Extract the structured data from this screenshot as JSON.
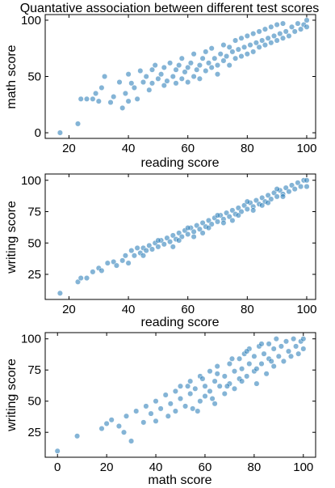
{
  "chart_data": [
    {
      "type": "scatter",
      "title": "Quantative association between different test scores",
      "xlabel": "reading score",
      "ylabel": "math score",
      "xlim": [
        12,
        103
      ],
      "ylim": [
        -5,
        105
      ],
      "xticks": [
        20,
        40,
        60,
        80,
        100
      ],
      "yticks": [
        0,
        50,
        100
      ],
      "color": "#1f77b4",
      "points": [
        [
          17,
          0
        ],
        [
          23,
          8
        ],
        [
          24,
          30
        ],
        [
          26,
          30
        ],
        [
          28,
          30
        ],
        [
          29,
          35
        ],
        [
          30,
          28
        ],
        [
          31,
          40
        ],
        [
          32,
          50
        ],
        [
          34,
          27
        ],
        [
          35,
          32
        ],
        [
          37,
          45
        ],
        [
          38,
          22
        ],
        [
          39,
          35
        ],
        [
          40,
          28
        ],
        [
          40,
          52
        ],
        [
          41,
          44
        ],
        [
          42,
          40
        ],
        [
          43,
          30
        ],
        [
          44,
          55
        ],
        [
          45,
          45
        ],
        [
          46,
          50
        ],
        [
          47,
          38
        ],
        [
          48,
          56
        ],
        [
          48,
          44
        ],
        [
          49,
          60
        ],
        [
          50,
          48
        ],
        [
          51,
          52
        ],
        [
          52,
          58
        ],
        [
          52,
          42
        ],
        [
          53,
          46
        ],
        [
          54,
          62
        ],
        [
          55,
          50
        ],
        [
          56,
          44
        ],
        [
          56,
          56
        ],
        [
          57,
          60
        ],
        [
          58,
          48
        ],
        [
          58,
          66
        ],
        [
          59,
          54
        ],
        [
          60,
          58
        ],
        [
          60,
          45
        ],
        [
          61,
          62
        ],
        [
          62,
          50
        ],
        [
          62,
          70
        ],
        [
          63,
          56
        ],
        [
          64,
          60
        ],
        [
          64,
          48
        ],
        [
          65,
          66
        ],
        [
          66,
          55
        ],
        [
          66,
          72
        ],
        [
          67,
          62
        ],
        [
          68,
          58
        ],
        [
          68,
          75
        ],
        [
          69,
          66
        ],
        [
          70,
          60
        ],
        [
          70,
          52
        ],
        [
          71,
          70
        ],
        [
          72,
          64
        ],
        [
          72,
          78
        ],
        [
          73,
          68
        ],
        [
          74,
          60
        ],
        [
          74,
          76
        ],
        [
          75,
          72
        ],
        [
          76,
          66
        ],
        [
          76,
          82
        ],
        [
          77,
          74
        ],
        [
          78,
          68
        ],
        [
          78,
          84
        ],
        [
          79,
          76
        ],
        [
          80,
          70
        ],
        [
          80,
          86
        ],
        [
          81,
          78
        ],
        [
          82,
          72
        ],
        [
          82,
          88
        ],
        [
          83,
          80
        ],
        [
          84,
          76
        ],
        [
          84,
          90
        ],
        [
          85,
          82
        ],
        [
          86,
          78
        ],
        [
          86,
          92
        ],
        [
          87,
          84
        ],
        [
          88,
          80
        ],
        [
          88,
          94
        ],
        [
          89,
          86
        ],
        [
          90,
          82
        ],
        [
          90,
          96
        ],
        [
          91,
          88
        ],
        [
          92,
          84
        ],
        [
          92,
          97
        ],
        [
          93,
          90
        ],
        [
          94,
          86
        ],
        [
          95,
          94
        ],
        [
          96,
          90
        ],
        [
          97,
          97
        ],
        [
          98,
          92
        ],
        [
          99,
          96
        ],
        [
          100,
          100
        ],
        [
          100,
          94
        ]
      ]
    },
    {
      "type": "scatter",
      "xlabel": "reading score",
      "ylabel": "writing score",
      "xlim": [
        12,
        103
      ],
      "ylim": [
        5,
        105
      ],
      "xticks": [
        20,
        40,
        60,
        80,
        100
      ],
      "yticks": [
        25,
        50,
        75,
        100
      ],
      "color": "#1f77b4",
      "points": [
        [
          17,
          10
        ],
        [
          23,
          19
        ],
        [
          24,
          22
        ],
        [
          26,
          22
        ],
        [
          28,
          27
        ],
        [
          30,
          30
        ],
        [
          31,
          28
        ],
        [
          33,
          34
        ],
        [
          35,
          35
        ],
        [
          36,
          32
        ],
        [
          38,
          36
        ],
        [
          39,
          40
        ],
        [
          40,
          34
        ],
        [
          41,
          44
        ],
        [
          42,
          40
        ],
        [
          43,
          46
        ],
        [
          44,
          42
        ],
        [
          45,
          46
        ],
        [
          46,
          44
        ],
        [
          47,
          48
        ],
        [
          48,
          45
        ],
        [
          49,
          50
        ],
        [
          50,
          47
        ],
        [
          51,
          52
        ],
        [
          52,
          49
        ],
        [
          53,
          54
        ],
        [
          54,
          51
        ],
        [
          55,
          56
        ],
        [
          56,
          53
        ],
        [
          57,
          58
        ],
        [
          58,
          55
        ],
        [
          59,
          60
        ],
        [
          60,
          57
        ],
        [
          61,
          62
        ],
        [
          62,
          59
        ],
        [
          63,
          64
        ],
        [
          64,
          61
        ],
        [
          65,
          66
        ],
        [
          66,
          63
        ],
        [
          67,
          68
        ],
        [
          68,
          65
        ],
        [
          69,
          70
        ],
        [
          70,
          67
        ],
        [
          71,
          72
        ],
        [
          72,
          69
        ],
        [
          73,
          74
        ],
        [
          74,
          71
        ],
        [
          75,
          76
        ],
        [
          76,
          73
        ],
        [
          77,
          78
        ],
        [
          78,
          75
        ],
        [
          79,
          80
        ],
        [
          80,
          77
        ],
        [
          81,
          82
        ],
        [
          82,
          79
        ],
        [
          83,
          84
        ],
        [
          84,
          81
        ],
        [
          85,
          86
        ],
        [
          86,
          83
        ],
        [
          87,
          88
        ],
        [
          88,
          85
        ],
        [
          89,
          90
        ],
        [
          90,
          87
        ],
        [
          91,
          92
        ],
        [
          92,
          89
        ],
        [
          93,
          94
        ],
        [
          94,
          91
        ],
        [
          95,
          96
        ],
        [
          96,
          93
        ],
        [
          97,
          98
        ],
        [
          98,
          95
        ],
        [
          99,
          100
        ],
        [
          100,
          100
        ],
        [
          100,
          95
        ],
        [
          45,
          40
        ],
        [
          55,
          47
        ],
        [
          65,
          58
        ],
        [
          75,
          68
        ],
        [
          85,
          80
        ],
        [
          50,
          52
        ],
        [
          60,
          62
        ],
        [
          70,
          72
        ],
        [
          80,
          83
        ],
        [
          90,
          93
        ],
        [
          57,
          52
        ],
        [
          67,
          62
        ],
        [
          77,
          72
        ],
        [
          87,
          82
        ],
        [
          62,
          55
        ],
        [
          72,
          66
        ],
        [
          82,
          76
        ],
        [
          92,
          87
        ]
      ]
    },
    {
      "type": "scatter",
      "xlabel": "math score",
      "ylabel": "writing score",
      "xlim": [
        -5,
        105
      ],
      "ylim": [
        5,
        105
      ],
      "xticks": [
        0,
        20,
        40,
        60,
        80,
        100
      ],
      "yticks": [
        25,
        50,
        75,
        100
      ],
      "color": "#1f77b4",
      "points": [
        [
          0,
          10
        ],
        [
          8,
          22
        ],
        [
          18,
          28
        ],
        [
          20,
          32
        ],
        [
          22,
          35
        ],
        [
          25,
          30
        ],
        [
          27,
          25
        ],
        [
          28,
          38
        ],
        [
          30,
          18
        ],
        [
          32,
          42
        ],
        [
          35,
          33
        ],
        [
          36,
          46
        ],
        [
          38,
          40
        ],
        [
          40,
          50
        ],
        [
          40,
          34
        ],
        [
          42,
          44
        ],
        [
          44,
          55
        ],
        [
          45,
          38
        ],
        [
          46,
          48
        ],
        [
          48,
          58
        ],
        [
          48,
          42
        ],
        [
          50,
          52
        ],
        [
          50,
          62
        ],
        [
          52,
          46
        ],
        [
          54,
          56
        ],
        [
          54,
          66
        ],
        [
          55,
          44
        ],
        [
          56,
          60
        ],
        [
          58,
          50
        ],
        [
          58,
          70
        ],
        [
          60,
          62
        ],
        [
          60,
          54
        ],
        [
          62,
          74
        ],
        [
          62,
          58
        ],
        [
          64,
          66
        ],
        [
          64,
          48
        ],
        [
          65,
          78
        ],
        [
          66,
          62
        ],
        [
          68,
          70
        ],
        [
          68,
          56
        ],
        [
          70,
          80
        ],
        [
          70,
          64
        ],
        [
          72,
          74
        ],
        [
          72,
          60
        ],
        [
          74,
          84
        ],
        [
          74,
          68
        ],
        [
          75,
          76
        ],
        [
          76,
          88
        ],
        [
          77,
          70
        ],
        [
          78,
          80
        ],
        [
          78,
          92
        ],
        [
          80,
          74
        ],
        [
          80,
          86
        ],
        [
          81,
          64
        ],
        [
          82,
          94
        ],
        [
          83,
          80
        ],
        [
          84,
          88
        ],
        [
          85,
          72
        ],
        [
          86,
          96
        ],
        [
          86,
          84
        ],
        [
          88,
          78
        ],
        [
          88,
          92
        ],
        [
          89,
          100
        ],
        [
          90,
          86
        ],
        [
          91,
          94
        ],
        [
          92,
          82
        ],
        [
          93,
          98
        ],
        [
          94,
          90
        ],
        [
          95,
          86
        ],
        [
          96,
          100
        ],
        [
          97,
          94
        ],
        [
          98,
          88
        ],
        [
          99,
          98
        ],
        [
          100,
          100
        ],
        [
          100,
          92
        ],
        [
          57,
          42
        ],
        [
          63,
          52
        ],
        [
          69,
          62
        ],
        [
          75,
          66
        ],
        [
          81,
          76
        ],
        [
          87,
          82
        ],
        [
          53,
          62
        ],
        [
          59,
          68
        ],
        [
          65,
          72
        ],
        [
          71,
          84
        ],
        [
          77,
          90
        ],
        [
          83,
          96
        ]
      ]
    }
  ]
}
